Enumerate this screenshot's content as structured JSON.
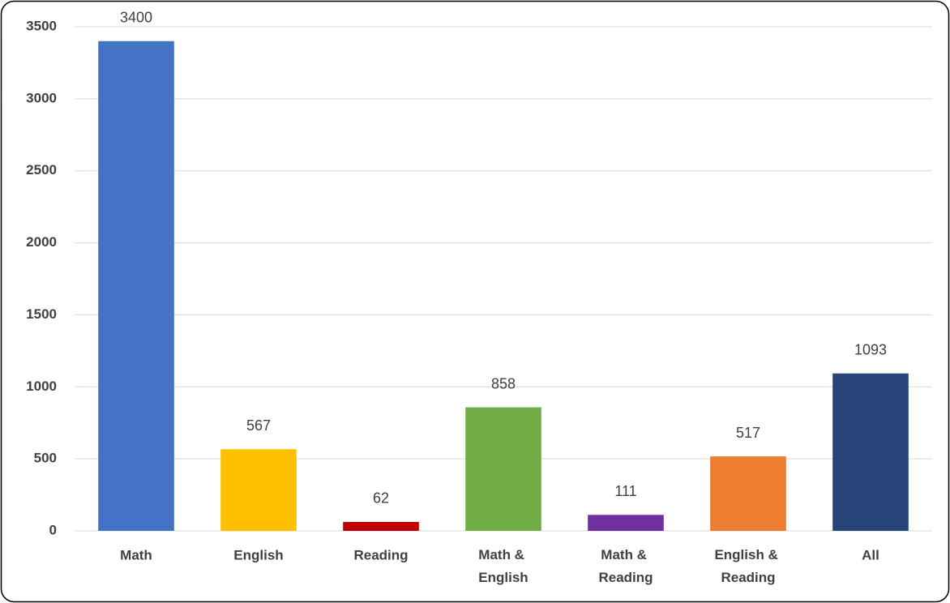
{
  "chart_data": {
    "type": "bar",
    "categories": [
      "Math",
      "English",
      "Reading",
      "Math & English",
      "Math & Reading",
      "English & Reading",
      "All"
    ],
    "values": [
      3400,
      567,
      62,
      858,
      111,
      517,
      1093
    ],
    "colors": [
      "#4472c4",
      "#ffc000",
      "#c00000",
      "#70ad47",
      "#7030a0",
      "#ed7d31",
      "#264478"
    ],
    "ylim": [
      0,
      3500
    ],
    "yticks": [
      0,
      500,
      1000,
      1500,
      2000,
      2500,
      3000,
      3500
    ],
    "grid": true
  }
}
